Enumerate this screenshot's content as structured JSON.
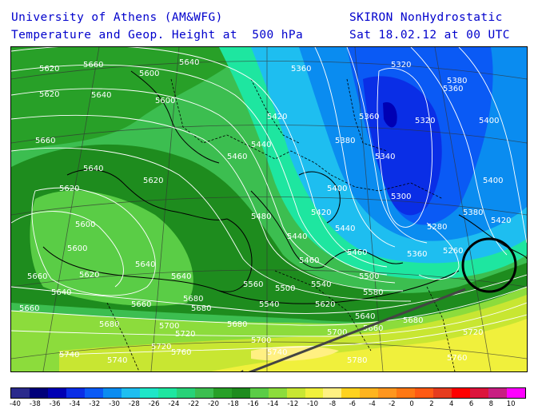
{
  "header": {
    "institution": "University of Athens (AM&WFG)",
    "model": "SKIRON NonHydrostatic",
    "field": "Temperature and Geop. Height at  500 hPa",
    "valid_time": "Sat 18.02.12 at 00 UTC"
  },
  "legend": {
    "colors": [
      "#2a2a8c",
      "#00007a",
      "#0000b4",
      "#0a2ee6",
      "#0a5af5",
      "#0a8cf0",
      "#1ebef0",
      "#1ee6c8",
      "#1ee6a0",
      "#28d278",
      "#3cbe50",
      "#28a028",
      "#1e8c1e",
      "#5acd46",
      "#8cdc3c",
      "#c8e632",
      "#f0f03c",
      "#fff082",
      "#ffd21e",
      "#ffb41e",
      "#ff961e",
      "#ff7814",
      "#ff5a14",
      "#e63c1e",
      "#ff0000",
      "#dc143c",
      "#c81e82",
      "#ff00ff"
    ],
    "labels": [
      "-40",
      "-38",
      "-36",
      "-34",
      "-32",
      "-30",
      "-28",
      "-26",
      "-24",
      "-22",
      "-20",
      "-18",
      "-16",
      "-14",
      "-12",
      "-10",
      "-8",
      "-6",
      "-4",
      "-2",
      "0",
      "2",
      "4",
      "6",
      "8",
      "10"
    ]
  },
  "map": {
    "contour_labels": [
      "5620",
      "5660",
      "5640",
      "5620",
      "5600",
      "5640",
      "5660",
      "5600",
      "5620",
      "5640",
      "5680",
      "5700",
      "5720",
      "5740",
      "5760",
      "5620",
      "5640",
      "5660",
      "5680",
      "5640",
      "5660",
      "5680",
      "5700",
      "5720",
      "5740",
      "5640",
      "5600",
      "5620",
      "5660",
      "5680",
      "5600",
      "5560",
      "5540",
      "5500",
      "5460",
      "5440",
      "5480",
      "5420",
      "5400",
      "5380",
      "5360",
      "5340",
      "5320",
      "5360",
      "5400",
      "5420",
      "5440",
      "5460",
      "5360",
      "5320",
      "5380",
      "5280",
      "5300",
      "5260",
      "5360",
      "5380",
      "5400",
      "5420",
      "5440",
      "5460",
      "5500",
      "5540",
      "5580",
      "5620",
      "5640",
      "5660",
      "5680",
      "5700",
      "5720",
      "5740",
      "5760",
      "5780"
    ]
  }
}
